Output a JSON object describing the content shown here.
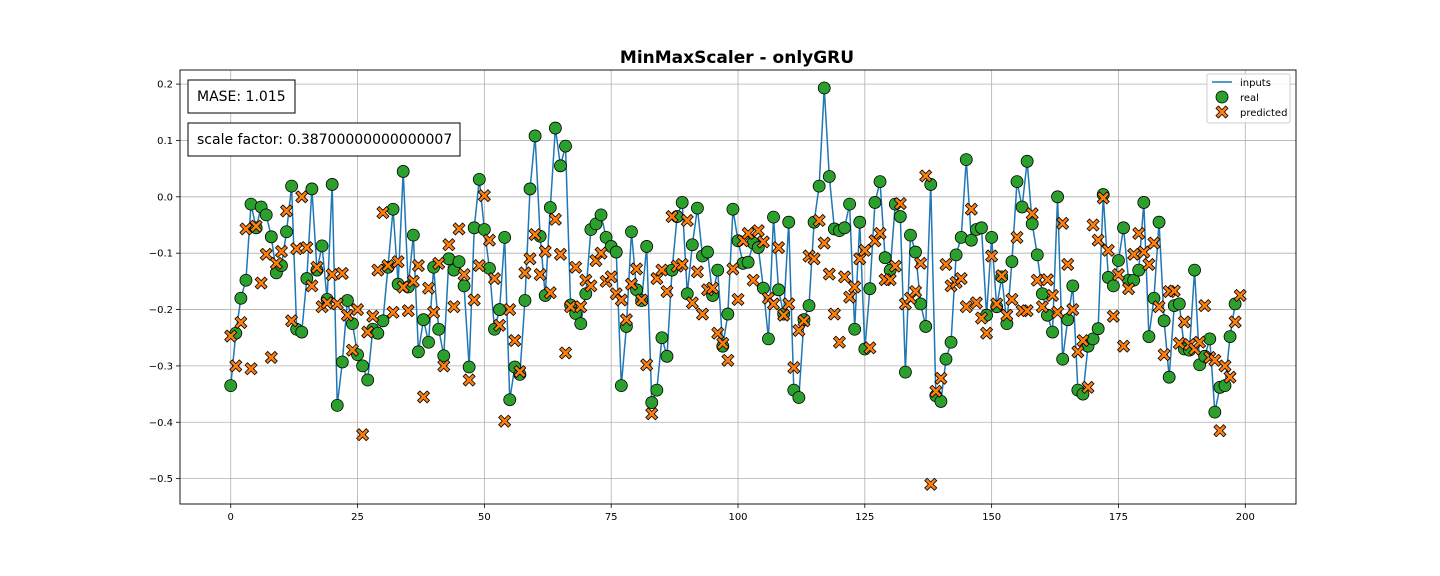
{
  "chart_data": {
    "type": "line",
    "title": "MinMaxScaler - onlyGRU",
    "xlabel": "",
    "ylabel": "",
    "xlim": [
      -10,
      210
    ],
    "ylim": [
      -0.545,
      0.225
    ],
    "xticks": [
      0,
      25,
      50,
      75,
      100,
      125,
      150,
      175,
      200
    ],
    "yticks": [
      -0.5,
      -0.4,
      -0.3,
      -0.2,
      -0.1,
      0.0,
      0.1,
      0.2
    ],
    "xtick_labels": [
      "0",
      "25",
      "50",
      "75",
      "100",
      "125",
      "150",
      "175",
      "200"
    ],
    "ytick_labels": [
      "−0.5",
      "−0.4",
      "−0.3",
      "−0.2",
      "−0.1",
      "0.0",
      "0.1",
      "0.2"
    ],
    "grid": true,
    "legend_position": "top-right",
    "legend": [
      "inputs",
      "real",
      "predicted"
    ],
    "annotations": [
      "MASE: 1.015",
      "scale factor: 0.38700000000000007"
    ],
    "colors": {
      "inputs": "#1f77b4",
      "real": "#2ca02c",
      "predicted": "#ff7f0e"
    },
    "series": [
      {
        "name": "inputs",
        "style": "line",
        "values": [
          -0.335,
          -0.242,
          -0.18,
          -0.148,
          -0.013,
          -0.055,
          -0.018,
          -0.032,
          -0.071,
          -0.135,
          -0.122,
          -0.062,
          0.019,
          -0.235,
          -0.24,
          -0.145,
          0.014,
          -0.13,
          -0.087,
          -0.182,
          0.022,
          -0.37,
          -0.293,
          -0.184,
          -0.225,
          -0.28,
          -0.3,
          -0.325,
          -0.235,
          -0.242,
          -0.22,
          -0.125,
          -0.022,
          -0.155,
          0.045,
          -0.16,
          -0.068,
          -0.275,
          -0.218,
          -0.258,
          -0.125,
          -0.235,
          -0.282,
          -0.11,
          -0.13,
          -0.115,
          -0.158,
          -0.302,
          -0.055,
          0.031,
          -0.058,
          -0.127,
          -0.235,
          -0.2,
          -0.072,
          -0.36,
          -0.302,
          -0.315,
          -0.184,
          0.014,
          0.108,
          -0.07,
          -0.175,
          -0.019,
          0.122,
          0.055,
          0.09,
          -0.192,
          -0.207,
          -0.225,
          -0.172,
          -0.058,
          -0.048,
          -0.032,
          -0.072,
          -0.088,
          -0.098,
          -0.335,
          -0.23,
          -0.062,
          -0.165,
          -0.184,
          -0.088,
          -0.365,
          -0.343,
          -0.25,
          -0.283,
          -0.13,
          -0.035,
          -0.01,
          -0.172,
          -0.085,
          -0.02,
          -0.105,
          -0.098,
          -0.175,
          -0.13,
          -0.265,
          -0.208,
          -0.022,
          -0.078,
          -0.118,
          -0.116,
          -0.082,
          -0.09,
          -0.162,
          -0.252,
          -0.036,
          -0.165,
          -0.208,
          -0.045,
          -0.343,
          -0.356,
          -0.218,
          -0.193,
          -0.045,
          0.019,
          0.193,
          0.036,
          -0.057,
          -0.06,
          -0.055,
          -0.013,
          -0.235,
          -0.045,
          -0.27,
          -0.163,
          -0.01,
          0.027,
          -0.108,
          -0.13,
          -0.013,
          -0.035,
          -0.311,
          -0.068,
          -0.098,
          -0.19,
          -0.23,
          0.022,
          -0.353,
          -0.363,
          -0.288,
          -0.258,
          -0.103,
          -0.072,
          0.066,
          -0.077,
          -0.058,
          -0.055,
          -0.21,
          -0.072,
          -0.195,
          -0.142,
          -0.225,
          -0.115,
          0.027,
          -0.018,
          0.063,
          -0.048,
          -0.103,
          -0.172,
          -0.21,
          -0.24,
          0.0,
          -0.288,
          -0.218,
          -0.158,
          -0.343,
          -0.35,
          -0.265,
          -0.252,
          -0.234,
          0.004,
          -0.143,
          -0.158,
          -0.113,
          -0.055,
          -0.148,
          -0.148,
          -0.13,
          -0.01,
          -0.248,
          -0.18,
          -0.045,
          -0.22,
          -0.32,
          -0.193,
          -0.19,
          -0.27,
          -0.272,
          -0.13,
          -0.298,
          -0.283,
          -0.252,
          -0.382,
          -0.338,
          -0.335,
          -0.248,
          -0.19
        ]
      },
      {
        "name": "real",
        "style": "circle",
        "values": [
          -0.335,
          -0.242,
          -0.18,
          -0.148,
          -0.013,
          -0.055,
          -0.018,
          -0.032,
          -0.071,
          -0.135,
          -0.122,
          -0.062,
          0.019,
          -0.235,
          -0.24,
          -0.145,
          0.014,
          -0.13,
          -0.087,
          -0.182,
          0.022,
          -0.37,
          -0.293,
          -0.184,
          -0.225,
          -0.28,
          -0.3,
          -0.325,
          -0.235,
          -0.242,
          -0.22,
          -0.125,
          -0.022,
          -0.155,
          0.045,
          -0.16,
          -0.068,
          -0.275,
          -0.218,
          -0.258,
          -0.125,
          -0.235,
          -0.282,
          -0.11,
          -0.13,
          -0.115,
          -0.158,
          -0.302,
          -0.055,
          0.031,
          -0.058,
          -0.127,
          -0.235,
          -0.2,
          -0.072,
          -0.36,
          -0.302,
          -0.315,
          -0.184,
          0.014,
          0.108,
          -0.07,
          -0.175,
          -0.019,
          0.122,
          0.055,
          0.09,
          -0.192,
          -0.207,
          -0.225,
          -0.172,
          -0.058,
          -0.048,
          -0.032,
          -0.072,
          -0.088,
          -0.098,
          -0.335,
          -0.23,
          -0.062,
          -0.165,
          -0.184,
          -0.088,
          -0.365,
          -0.343,
          -0.25,
          -0.283,
          -0.13,
          -0.035,
          -0.01,
          -0.172,
          -0.085,
          -0.02,
          -0.105,
          -0.098,
          -0.175,
          -0.13,
          -0.265,
          -0.208,
          -0.022,
          -0.078,
          -0.118,
          -0.116,
          -0.082,
          -0.09,
          -0.162,
          -0.252,
          -0.036,
          -0.165,
          -0.208,
          -0.045,
          -0.343,
          -0.356,
          -0.218,
          -0.193,
          -0.045,
          0.019,
          0.193,
          0.036,
          -0.057,
          -0.06,
          -0.055,
          -0.013,
          -0.235,
          -0.045,
          -0.27,
          -0.163,
          -0.01,
          0.027,
          -0.108,
          -0.13,
          -0.013,
          -0.035,
          -0.311,
          -0.068,
          -0.098,
          -0.19,
          -0.23,
          0.022,
          -0.353,
          -0.363,
          -0.288,
          -0.258,
          -0.103,
          -0.072,
          0.066,
          -0.077,
          -0.058,
          -0.055,
          -0.21,
          -0.072,
          -0.195,
          -0.142,
          -0.225,
          -0.115,
          0.027,
          -0.018,
          0.063,
          -0.048,
          -0.103,
          -0.172,
          -0.21,
          -0.24,
          0.0,
          -0.288,
          -0.218,
          -0.158,
          -0.343,
          -0.35,
          -0.265,
          -0.252,
          -0.234,
          0.004,
          -0.143,
          -0.158,
          -0.113,
          -0.055,
          -0.148,
          -0.148,
          -0.13,
          -0.01,
          -0.248,
          -0.18,
          -0.045,
          -0.22,
          -0.32,
          -0.193,
          -0.19,
          -0.27,
          -0.272,
          -0.13,
          -0.298,
          -0.283,
          -0.252,
          -0.382,
          -0.338,
          -0.335,
          -0.248,
          -0.19
        ]
      },
      {
        "name": "predicted",
        "style": "x",
        "values": [
          -0.247,
          -0.3,
          -0.223,
          -0.057,
          -0.305,
          -0.052,
          -0.153,
          -0.102,
          -0.285,
          -0.118,
          -0.097,
          -0.025,
          -0.22,
          -0.092,
          0.0,
          -0.09,
          -0.158,
          -0.125,
          -0.195,
          -0.188,
          -0.138,
          -0.19,
          -0.136,
          -0.21,
          -0.272,
          -0.2,
          -0.422,
          -0.24,
          -0.212,
          -0.13,
          -0.028,
          -0.122,
          -0.205,
          -0.115,
          -0.16,
          -0.202,
          -0.15,
          -0.122,
          -0.355,
          -0.162,
          -0.205,
          -0.118,
          -0.3,
          -0.085,
          -0.195,
          -0.057,
          -0.138,
          -0.325,
          -0.183,
          -0.122,
          0.002,
          -0.077,
          -0.145,
          -0.228,
          -0.398,
          -0.2,
          -0.255,
          -0.31,
          -0.135,
          -0.11,
          -0.067,
          -0.138,
          -0.097,
          -0.17,
          -0.04,
          -0.102,
          -0.277,
          -0.195,
          -0.125,
          -0.195,
          -0.148,
          -0.158,
          -0.113,
          -0.1,
          -0.15,
          -0.142,
          -0.172,
          -0.183,
          -0.218,
          -0.155,
          -0.128,
          -0.183,
          -0.298,
          -0.385,
          -0.145,
          -0.13,
          -0.168,
          -0.035,
          -0.123,
          -0.12,
          -0.042,
          -0.188,
          -0.133,
          -0.208,
          -0.165,
          -0.162,
          -0.242,
          -0.26,
          -0.29,
          -0.128,
          -0.182,
          -0.078,
          -0.065,
          -0.148,
          -0.06,
          -0.08,
          -0.18,
          -0.19,
          -0.09,
          -0.21,
          -0.19,
          -0.303,
          -0.237,
          -0.22,
          -0.105,
          -0.11,
          -0.042,
          -0.082,
          -0.137,
          -0.208,
          -0.258,
          -0.142,
          -0.178,
          -0.16,
          -0.11,
          -0.095,
          -0.268,
          -0.078,
          -0.065,
          -0.147,
          -0.147,
          -0.123,
          -0.012,
          -0.19,
          -0.18,
          -0.168,
          -0.118,
          0.037,
          -0.51,
          -0.345,
          -0.322,
          -0.12,
          -0.158,
          -0.152,
          -0.145,
          -0.195,
          -0.022,
          -0.188,
          -0.215,
          -0.242,
          -0.105,
          -0.19,
          -0.14,
          -0.21,
          -0.182,
          -0.072,
          -0.202,
          -0.202,
          -0.03,
          -0.148,
          -0.195,
          -0.147,
          -0.175,
          -0.205,
          -0.047,
          -0.12,
          -0.2,
          -0.275,
          -0.255,
          -0.338,
          -0.05,
          -0.077,
          -0.002,
          -0.095,
          -0.212,
          -0.138,
          -0.265,
          -0.163,
          -0.102,
          -0.065,
          -0.098,
          -0.12,
          -0.082,
          -0.195,
          -0.28,
          -0.168,
          -0.167,
          -0.26,
          -0.222,
          -0.262,
          -0.27,
          -0.258,
          -0.193,
          -0.285,
          -0.29,
          -0.415,
          -0.3,
          -0.32,
          -0.222,
          -0.175
        ]
      }
    ]
  }
}
